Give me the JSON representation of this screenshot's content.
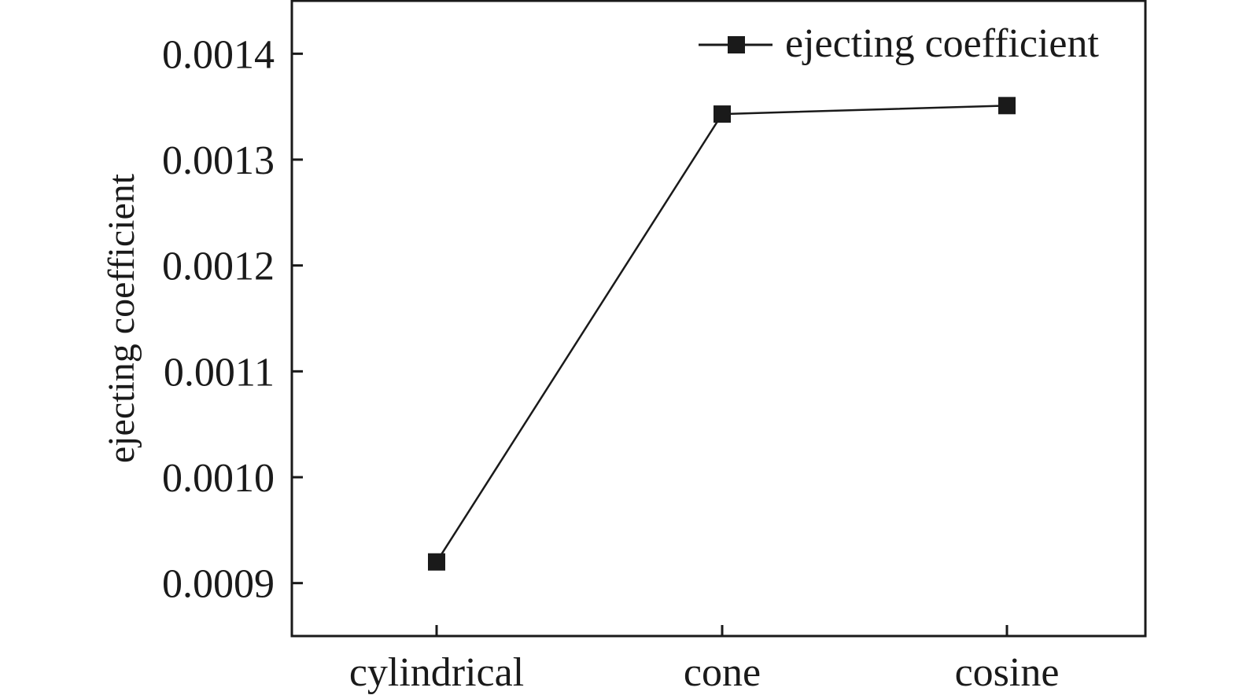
{
  "chart_data": {
    "type": "line",
    "categories": [
      "cylindrical",
      "cone",
      "cosine"
    ],
    "series": [
      {
        "name": "ejecting coefficient",
        "values": [
          0.00092,
          0.001343,
          0.001351
        ]
      }
    ],
    "xlabel": "",
    "ylabel": "ejecting coefficient",
    "yticks": [
      "0.0009",
      "0.0010",
      "0.0011",
      "0.0012",
      "0.0013",
      "0.0014"
    ],
    "ylim": [
      0.00085,
      0.00145
    ],
    "grid": false,
    "legend": "top-right",
    "colors": {
      "series": "#1a1a1a",
      "axis": "#1a1a1a"
    }
  }
}
